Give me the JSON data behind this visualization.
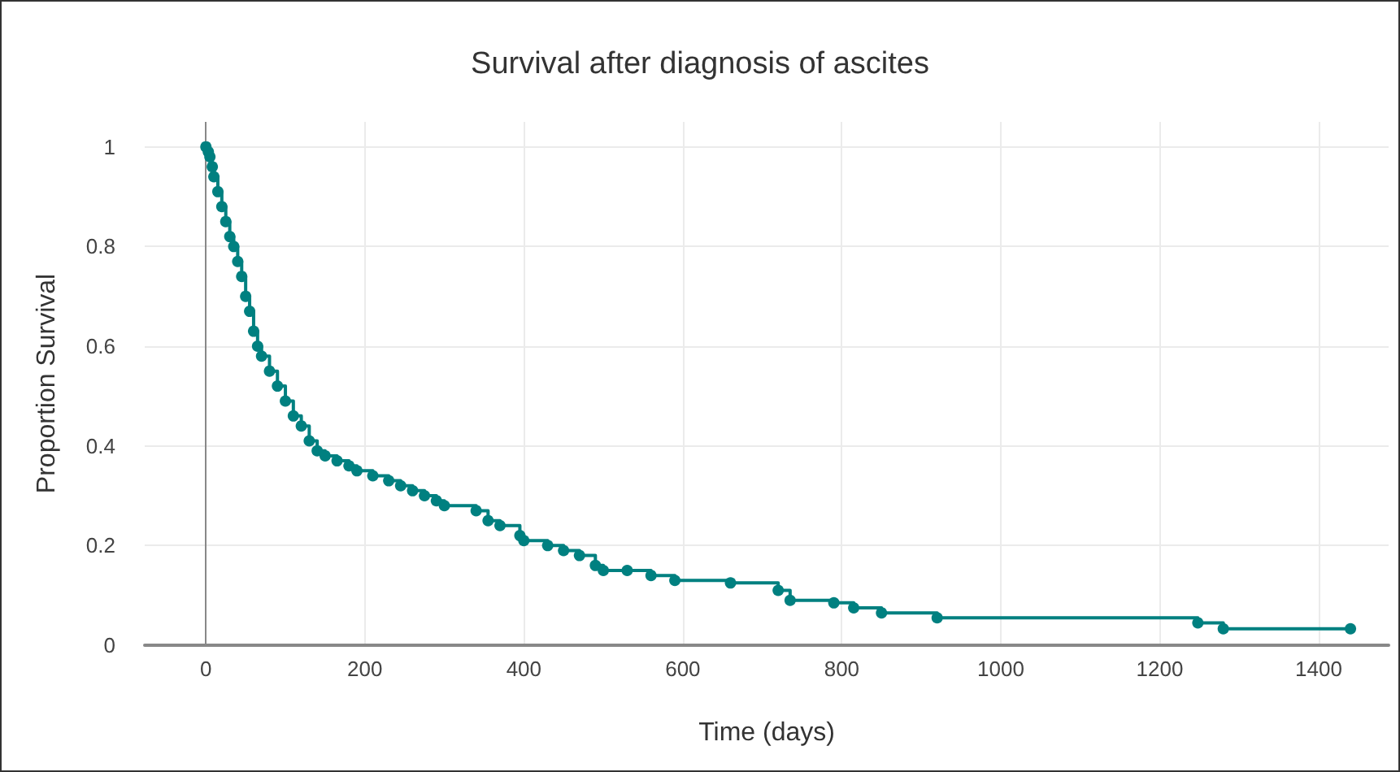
{
  "chart_data": {
    "type": "step",
    "title": "Survival after diagnosis of ascites",
    "xlabel": "Time (days)",
    "ylabel": "Proportion Survival",
    "marker": "circle",
    "grid": true,
    "xlim": [
      -77,
      1488
    ],
    "xticks": [
      0,
      200,
      400,
      600,
      800,
      1000,
      1200,
      1400
    ],
    "ylim": [
      0,
      1.05
    ],
    "yticks": [
      0,
      0.2,
      0.4,
      0.6,
      0.8,
      1
    ],
    "series": [
      {
        "color": "#008080",
        "x": [
          0,
          3,
          5,
          8,
          10,
          15,
          20,
          25,
          30,
          35,
          40,
          45,
          50,
          55,
          60,
          65,
          70,
          80,
          90,
          100,
          110,
          120,
          130,
          140,
          150,
          165,
          180,
          190,
          210,
          230,
          245,
          260,
          275,
          290,
          300,
          340,
          355,
          370,
          395,
          400,
          430,
          450,
          470,
          490,
          500,
          530,
          560,
          590,
          660,
          720,
          735,
          790,
          815,
          850,
          920,
          1248,
          1280,
          1440
        ],
        "values": [
          1,
          0.99,
          0.98,
          0.96,
          0.94,
          0.91,
          0.88,
          0.85,
          0.82,
          0.8,
          0.77,
          0.74,
          0.7,
          0.67,
          0.63,
          0.6,
          0.58,
          0.55,
          0.52,
          0.49,
          0.46,
          0.44,
          0.41,
          0.39,
          0.38,
          0.37,
          0.36,
          0.35,
          0.34,
          0.33,
          0.32,
          0.31,
          0.3,
          0.29,
          0.28,
          0.27,
          0.25,
          0.24,
          0.22,
          0.21,
          0.2,
          0.19,
          0.18,
          0.16,
          0.15,
          0.15,
          0.14,
          0.13,
          0.125,
          0.11,
          0.09,
          0.085,
          0.075,
          0.065,
          0.055,
          0.045,
          0.033,
          0.033
        ]
      }
    ]
  }
}
